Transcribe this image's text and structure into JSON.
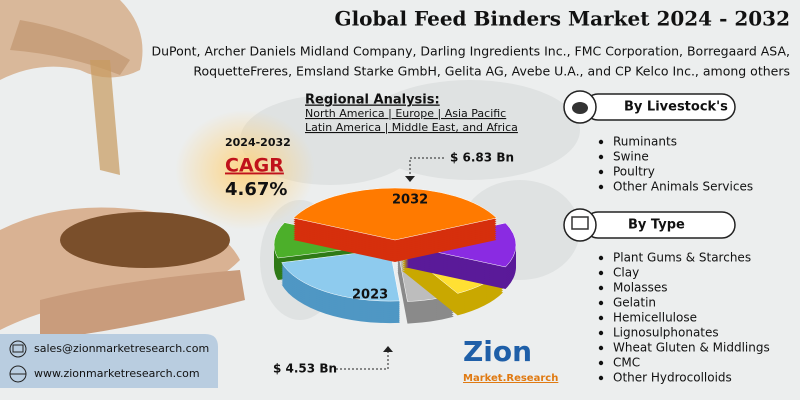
{
  "header": {
    "title": "Global Feed Binders Market 2024 - 2032",
    "companies": [
      "DuPont, Archer Daniels Midland Company, Darling Ingredients Inc., FMC Corporation, Borregaard ASA,",
      "RoquetteFreres, Emsland Starke GmbH, Gelita AG, Avebe U.A., and CP Kelco Inc., among others"
    ]
  },
  "regional": {
    "heading": "Regional Analysis:",
    "lines": [
      "North America | Europe | Asia Pacific",
      "Latin America | Middle East, and Africa"
    ]
  },
  "cagr": {
    "period": "2024-2032",
    "label": "CAGR",
    "value": "4.67%"
  },
  "forecast": {
    "value_2032": "$ 6.83 Bn",
    "year_2032": "2032",
    "year_2023": "2023",
    "value_2023": "$ 4.53 Bn"
  },
  "livestock": {
    "heading": "By Livestock's",
    "items": [
      "Ruminants",
      "Swine",
      "Poultry",
      "Other Animals Services"
    ]
  },
  "type": {
    "heading": "By Type",
    "items": [
      "Plant Gums & Starches",
      "Clay",
      "Molasses",
      "Gelatin",
      "Hemicellulose",
      "Lignosulphonates",
      "Wheat Gluten & Middlings",
      "CMC",
      "Other Hydrocolloids"
    ]
  },
  "contact": {
    "email": "sales@zionmarketresearch.com",
    "website": "www.zionmarketresearch.com"
  },
  "logo": {
    "name": "Zion",
    "sub": "Market.Research"
  }
}
